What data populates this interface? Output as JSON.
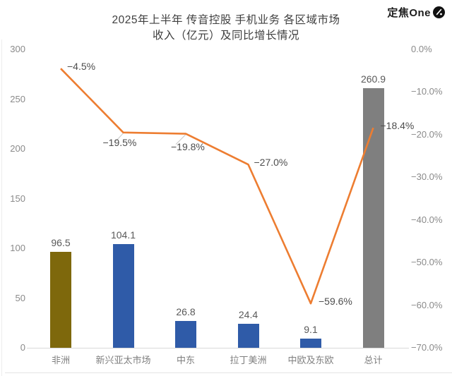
{
  "header": {
    "logo_text": "定焦One"
  },
  "chart_data": {
    "type": "bar",
    "title_line1": "2025年上半年 传音控股 手机业务 各区域市场",
    "title_line2": "收入（亿元）及同比增长情况",
    "categories": [
      "非洲",
      "新兴亚太市场",
      "中东",
      "拉丁美洲",
      "中欧及东欧",
      "总计"
    ],
    "series": [
      {
        "name": "收入（亿元）",
        "type": "bar",
        "values": [
          96.5,
          104.1,
          26.8,
          24.4,
          9.1,
          260.9
        ],
        "labels": [
          "96.5",
          "104.1",
          "26.8",
          "24.4",
          "9.1",
          "260.9"
        ],
        "bar_colors": [
          "#7e680c",
          "#2f5ba8",
          "#2f5ba8",
          "#2f5ba8",
          "#2f5ba8",
          "#7f7f7f"
        ]
      },
      {
        "name": "同比增长",
        "type": "line",
        "values": [
          -4.5,
          -19.5,
          -19.8,
          -27.0,
          -59.6,
          -18.4
        ],
        "labels": [
          "−4.5%",
          "−19.5%",
          "−19.8%",
          "−27.0%",
          "−59.6%",
          "−18.4%"
        ],
        "color": "#ed7d31"
      }
    ],
    "left_axis": {
      "ticks": [
        "300",
        "250",
        "200",
        "150",
        "100",
        "50",
        "0"
      ],
      "values": [
        300,
        250,
        200,
        150,
        100,
        50,
        0
      ],
      "min": 0,
      "max": 300
    },
    "right_axis": {
      "ticks": [
        "0.0%",
        "−10.0%",
        "−20.0%",
        "−30.0%",
        "−40.0%",
        "−50.0%",
        "−60.0%",
        "−70.0%"
      ],
      "values": [
        0,
        -10,
        -20,
        -30,
        -40,
        -50,
        -60,
        -70
      ],
      "min": -70,
      "max": 0
    },
    "grid": "off",
    "legend": "none"
  }
}
